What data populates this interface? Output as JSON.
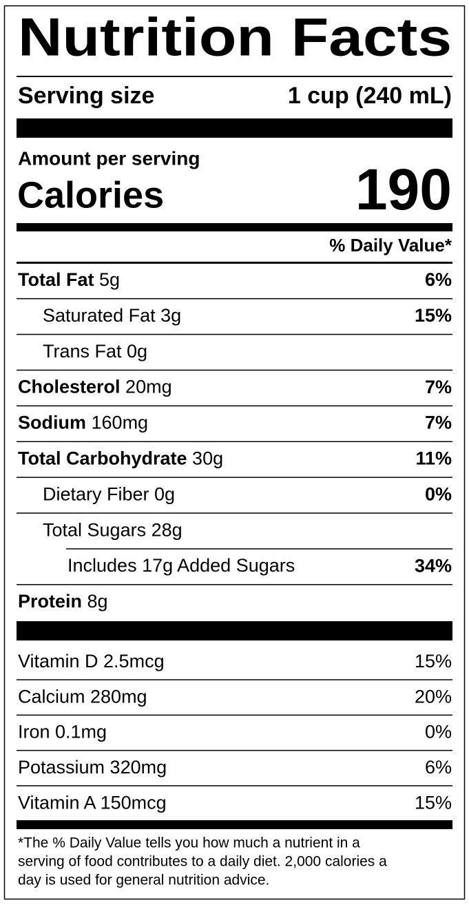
{
  "title": "Nutrition Facts",
  "serving": {
    "label": "Serving size",
    "value": "1 cup (240 mL)"
  },
  "amount_per_serving": "Amount per serving",
  "calories": {
    "label": "Calories",
    "value": "190"
  },
  "daily_value_header": "% Daily Value*",
  "nutrients": [
    {
      "name": "Total Fat",
      "amount": "5g",
      "dv": "6%",
      "sub": [
        {
          "text": "Saturated Fat 3g",
          "dv": "15%"
        },
        {
          "text": "Trans Fat 0g"
        }
      ]
    },
    {
      "name": "Cholesterol",
      "amount": "20mg",
      "dv": "7%"
    },
    {
      "name": "Sodium",
      "amount": "160mg",
      "dv": "7%"
    },
    {
      "name": "Total Carbohydrate",
      "amount": "30g",
      "dv": "11%",
      "sub": [
        {
          "text": "Dietary Fiber 0g",
          "dv": "0%"
        },
        {
          "text": "Total Sugars 28g",
          "sub": [
            {
              "text": "Includes 17g Added Sugars",
              "dv": "34%"
            }
          ]
        }
      ]
    },
    {
      "name": "Protein",
      "amount": "8g"
    }
  ],
  "vitamins": [
    {
      "text": "Vitamin D 2.5mcg",
      "dv": "15%"
    },
    {
      "text": "Calcium 280mg",
      "dv": "20%"
    },
    {
      "text": "Iron 0.1mg",
      "dv": "0%"
    },
    {
      "text": "Potassium 320mg",
      "dv": "6%"
    },
    {
      "text": "Vitamin A 150mcg",
      "dv": "15%"
    }
  ],
  "footnote": [
    "*The % Daily Value tells you how much a nutrient in a",
    "serving of food contributes to a daily diet. 2,000 calories a",
    "day is used for general nutrition advice."
  ]
}
